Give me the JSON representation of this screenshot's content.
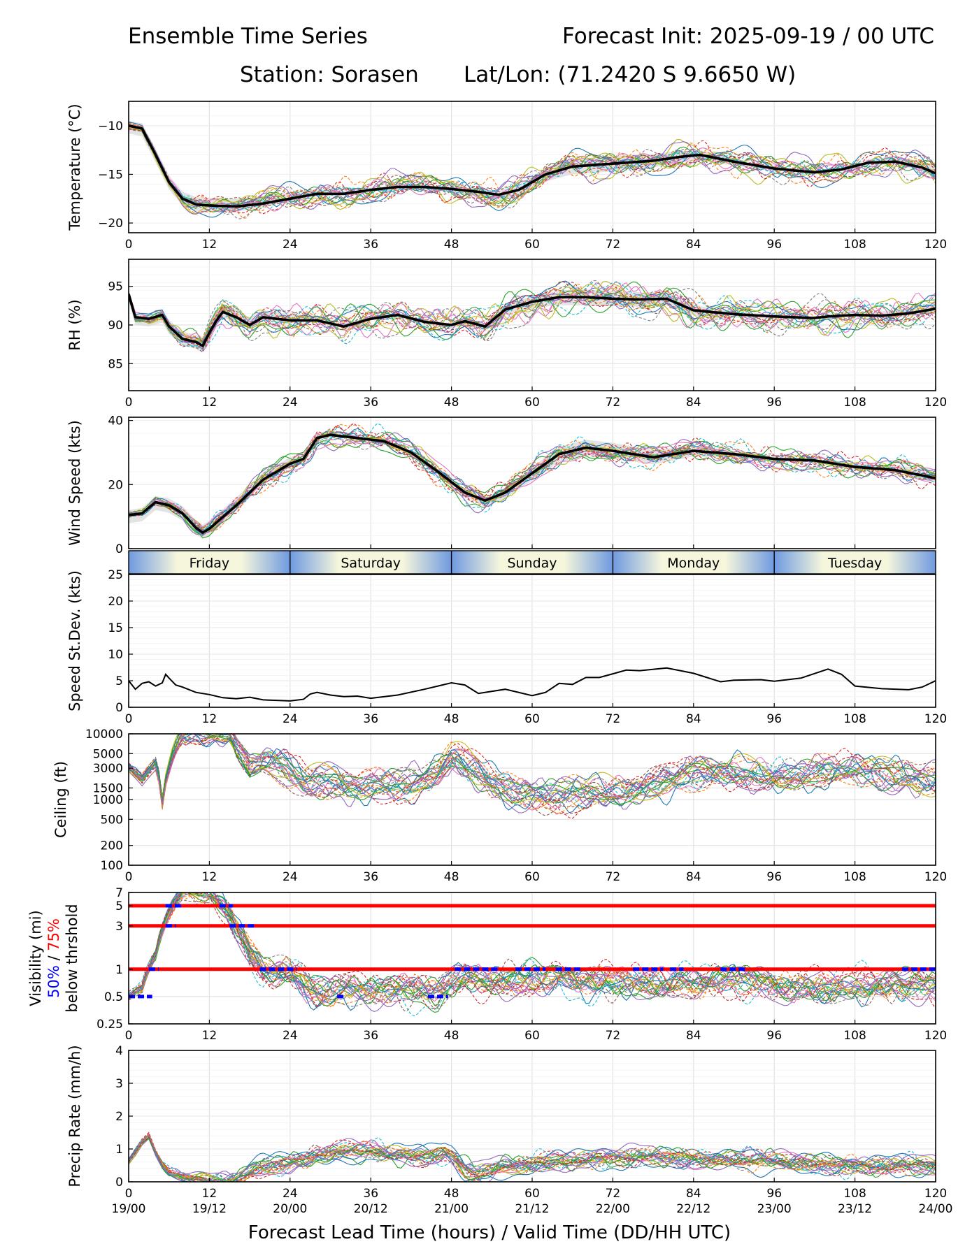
{
  "header": {
    "title_left": "Ensemble Time Series",
    "title_right": "Forecast Init: 2025-09-19 / 00 UTC",
    "station": "Station: Sorasen",
    "latlon": "Lat/Lon: (71.2420 S 9.6650 W)"
  },
  "xaxis": {
    "label": "Forecast Lead Time (hours) / Valid Time (DD/HH UTC)",
    "ticks": [
      0,
      12,
      24,
      36,
      48,
      60,
      72,
      84,
      96,
      108,
      120
    ],
    "valid_times": [
      "19/00",
      "19/12",
      "20/00",
      "20/12",
      "21/00",
      "21/12",
      "22/00",
      "22/12",
      "23/00",
      "23/12",
      "24/00"
    ],
    "range": [
      0,
      120
    ]
  },
  "days": [
    "Friday",
    "Saturday",
    "Sunday",
    "Monday",
    "Tuesday"
  ],
  "colors": {
    "mean": "#000000",
    "threshold": "#ff0000",
    "p50": "#0000ff",
    "p75": "#ff0000",
    "band_fill": "#d9d9d9",
    "day_light": "#f5f6dc",
    "day_dark": "#6f9ae0",
    "members": [
      "#1f77b4",
      "#ff7f0e",
      "#2ca02c",
      "#d62728",
      "#9467bd",
      "#8c564b",
      "#e377c2",
      "#7f7f7f",
      "#bcbd22",
      "#17becf"
    ]
  },
  "chart_data": [
    {
      "type": "line",
      "id": "temperature",
      "ylabel": "Temperature (°C)",
      "ylim": [
        -21,
        -7.5
      ],
      "yticks": [
        -20,
        -15,
        -10
      ],
      "mean": {
        "x": [
          0,
          2,
          4,
          6,
          8,
          10,
          12,
          16,
          20,
          24,
          28,
          32,
          36,
          40,
          44,
          48,
          52,
          55,
          58,
          62,
          66,
          72,
          78,
          82,
          85,
          90,
          96,
          102,
          106,
          110,
          114,
          118,
          120
        ],
        "y": [
          -10,
          -10.3,
          -13,
          -15.8,
          -17.5,
          -18.1,
          -18.2,
          -18.3,
          -18,
          -17.5,
          -17,
          -17,
          -16.6,
          -16.3,
          -16.3,
          -16.5,
          -16.8,
          -17.1,
          -16.6,
          -15,
          -14.2,
          -13.9,
          -13.6,
          -13.2,
          -13,
          -13.7,
          -14.4,
          -14.8,
          -14.5,
          -13.8,
          -13.7,
          -14.3,
          -14.9
        ]
      },
      "band_hw": 0.8,
      "spread": 1.4,
      "members": 20
    },
    {
      "type": "line",
      "id": "rh",
      "ylabel": "RH (%)",
      "ylim": [
        81.5,
        98.5
      ],
      "yticks": [
        85,
        90,
        95
      ],
      "mean": {
        "x": [
          0,
          1,
          3,
          5,
          6,
          8,
          10,
          11,
          12,
          13,
          14,
          16,
          18,
          20,
          24,
          28,
          30,
          32,
          36,
          40,
          44,
          48,
          50,
          53,
          56,
          60,
          64,
          68,
          72,
          76,
          80,
          84,
          90,
          96,
          102,
          104,
          108,
          112,
          116,
          120
        ],
        "y": [
          94,
          91,
          90.8,
          91.3,
          89.8,
          88.2,
          87.8,
          87.3,
          89,
          90.5,
          91.7,
          91,
          90,
          91,
          90.6,
          90.6,
          90.2,
          89.8,
          90.8,
          91.3,
          90.4,
          90,
          90.5,
          89.8,
          92,
          93,
          93.6,
          93.6,
          93.4,
          93.3,
          93.4,
          91.9,
          91.4,
          91.1,
          90.9,
          91.1,
          91.3,
          91.2,
          91.5,
          92.1
        ]
      },
      "band_hw": 1.0,
      "spread": 2.0,
      "members": 20
    },
    {
      "type": "line",
      "id": "wind",
      "ylabel": "Wind Speed (kts)",
      "ylim": [
        0,
        41
      ],
      "yticks": [
        0,
        20,
        40
      ],
      "mean": {
        "x": [
          0,
          2,
          4,
          6,
          8,
          10,
          11,
          12,
          16,
          20,
          24,
          26,
          28,
          30,
          34,
          38,
          42,
          46,
          50,
          53,
          56,
          60,
          64,
          68,
          72,
          78,
          84,
          90,
          96,
          102,
          108,
          114,
          120
        ],
        "y": [
          10.5,
          11,
          14.5,
          13.5,
          11,
          6.5,
          5,
          6.2,
          13.5,
          21.5,
          26.5,
          28,
          34.5,
          35.5,
          34.5,
          33.5,
          30,
          24,
          17.5,
          15,
          17.5,
          23.5,
          29.5,
          31.5,
          30.5,
          28.5,
          30.5,
          29.5,
          28,
          27.5,
          25.5,
          24.5,
          22
        ]
      },
      "band_hw": 2.5,
      "spread": 3.2,
      "members": 20
    },
    {
      "type": "line",
      "id": "stdev",
      "ylabel": "Speed St.Dev. (kts)",
      "ylim": [
        0,
        25
      ],
      "yticks": [
        0,
        5,
        10,
        15,
        20,
        25
      ],
      "series": [
        {
          "name": "stdev",
          "x": [
            0,
            1,
            2,
            3,
            4,
            5,
            5.5,
            6,
            7,
            8,
            10,
            12,
            14,
            16,
            18,
            20,
            22,
            24,
            26,
            27,
            28,
            30,
            32,
            34,
            36,
            40,
            44,
            48,
            50,
            52,
            56,
            60,
            62,
            64,
            66,
            68,
            70,
            72,
            74,
            76,
            80,
            84,
            88,
            90,
            94,
            96,
            100,
            104,
            106,
            108,
            112,
            116,
            118,
            120
          ],
          "y": [
            5,
            3.4,
            4.5,
            4.8,
            4,
            4.6,
            6.2,
            5.5,
            4.2,
            3.8,
            2.8,
            2.4,
            1.8,
            1.6,
            1.9,
            1.4,
            1.3,
            1.2,
            1.5,
            2.5,
            2.8,
            2.3,
            2,
            2.1,
            1.7,
            2.3,
            3.4,
            4.6,
            4.2,
            2.6,
            3.4,
            2.2,
            2.8,
            4.5,
            4.3,
            5.6,
            5.6,
            6.3,
            7,
            6.9,
            7.4,
            6.4,
            4.8,
            5.1,
            5.2,
            4.9,
            5.5,
            7.2,
            6.2,
            4,
            3.5,
            3.3,
            3.8,
            5
          ]
        }
      ]
    },
    {
      "type": "line",
      "id": "ceiling",
      "ylabel": "Ceiling (ft)",
      "scale": "log",
      "ylim": [
        100,
        10000
      ],
      "yticks": [
        100,
        200,
        500,
        1000,
        1500,
        3000,
        5000,
        10000
      ],
      "yticklabels": [
        "100",
        "200",
        "500",
        "1000",
        "1500",
        "3000",
        "5000",
        "10000"
      ],
      "mean": {
        "x": [
          0,
          2,
          4,
          5,
          6,
          7,
          8,
          9,
          15,
          16,
          18,
          20,
          24,
          26,
          30,
          36,
          42,
          46,
          48,
          50,
          54,
          58,
          62,
          66,
          72,
          78,
          84,
          90,
          96,
          102,
          108,
          114,
          120
        ],
        "y": [
          3000,
          2000,
          3500,
          900,
          3000,
          6000,
          9500,
          10000,
          10000,
          6000,
          3000,
          4000,
          2500,
          1800,
          1800,
          1700,
          1700,
          2200,
          4000,
          3500,
          1800,
          1300,
          1100,
          1200,
          1300,
          1700,
          2200,
          2500,
          2600,
          2500,
          2600,
          2300,
          2000
        ]
      },
      "spread_log": 0.22,
      "members": 25
    },
    {
      "type": "line",
      "id": "visibility",
      "ylabel": "Visibility (mi)",
      "ylabel_pcts": {
        "p50": "50%",
        "sep": " / ",
        "p75": "75%",
        "below": "below thrshold"
      },
      "scale": "log",
      "ylim": [
        0.25,
        7
      ],
      "yticks": [
        0.25,
        0.5,
        1,
        3,
        5,
        7
      ],
      "yticklabels": [
        "0.25",
        "0.5",
        "1",
        "3",
        "5",
        "7"
      ],
      "thresholds": [
        1,
        3,
        5
      ],
      "mean": {
        "x": [
          0,
          2,
          4,
          6,
          8,
          10,
          12,
          14,
          16,
          18,
          20,
          24,
          26,
          28,
          30,
          36,
          42,
          46,
          48,
          50,
          52,
          56,
          60,
          62,
          64,
          68,
          72,
          78,
          84,
          90,
          96,
          102,
          108,
          114,
          120
        ],
        "y": [
          0.5,
          0.6,
          1.4,
          4,
          7,
          7,
          7,
          5,
          3,
          1.6,
          1,
          0.9,
          0.65,
          0.55,
          0.55,
          0.6,
          0.6,
          0.55,
          0.7,
          0.8,
          0.75,
          0.75,
          0.8,
          0.75,
          0.8,
          0.7,
          0.7,
          0.75,
          0.7,
          0.75,
          0.65,
          0.65,
          0.65,
          0.65,
          0.65
        ]
      },
      "spread_log": 0.18,
      "members": 25,
      "below_50pct": [
        {
          "level": 0.5,
          "x": [
            0,
            3.5
          ]
        },
        {
          "level": 1,
          "x": [
            3,
            4.5
          ]
        },
        {
          "level": 3,
          "x": [
            5.5,
            7
          ]
        },
        {
          "level": 5,
          "x": [
            5.5,
            8
          ]
        },
        {
          "level": 5,
          "x": [
            13.5,
            15.5
          ]
        },
        {
          "level": 3,
          "x": [
            15,
            19
          ]
        },
        {
          "level": 1,
          "x": [
            19.5,
            25
          ]
        },
        {
          "level": 0.5,
          "x": [
            31,
            32
          ]
        },
        {
          "level": 0.5,
          "x": [
            44.5,
            47.5
          ]
        },
        {
          "level": 1,
          "x": [
            48.5,
            55
          ]
        },
        {
          "level": 1,
          "x": [
            57.5,
            62
          ]
        },
        {
          "level": 1,
          "x": [
            63.5,
            67.5
          ]
        },
        {
          "level": 1,
          "x": [
            75,
            79.5
          ]
        },
        {
          "level": 1,
          "x": [
            80.5,
            82.5
          ]
        },
        {
          "level": 1,
          "x": [
            88,
            92
          ]
        },
        {
          "level": 1,
          "x": [
            115,
            120
          ]
        }
      ]
    },
    {
      "type": "line",
      "id": "precip",
      "ylabel": "Precip Rate (mm/h)",
      "ylim": [
        0,
        4
      ],
      "yticks": [
        0,
        1,
        2,
        3,
        4
      ],
      "mean": {
        "x": [
          0,
          1,
          2,
          3,
          4,
          5,
          6,
          8,
          10,
          12,
          14,
          16,
          18,
          20,
          24,
          28,
          32,
          36,
          40,
          44,
          47,
          48,
          50,
          52,
          56,
          60,
          64,
          68,
          72,
          78,
          84,
          90,
          96,
          102,
          108,
          114,
          120
        ],
        "y": [
          0.6,
          0.9,
          1.2,
          1.4,
          0.9,
          0.5,
          0.3,
          0.15,
          0.08,
          0.05,
          0.05,
          0.1,
          0.3,
          0.45,
          0.6,
          0.85,
          0.9,
          0.9,
          0.8,
          0.75,
          0.95,
          0.85,
          0.45,
          0.3,
          0.45,
          0.5,
          0.6,
          0.65,
          0.75,
          0.8,
          0.7,
          0.65,
          0.6,
          0.55,
          0.55,
          0.5,
          0.45
        ]
      },
      "spread": 0.35,
      "members": 25
    }
  ]
}
